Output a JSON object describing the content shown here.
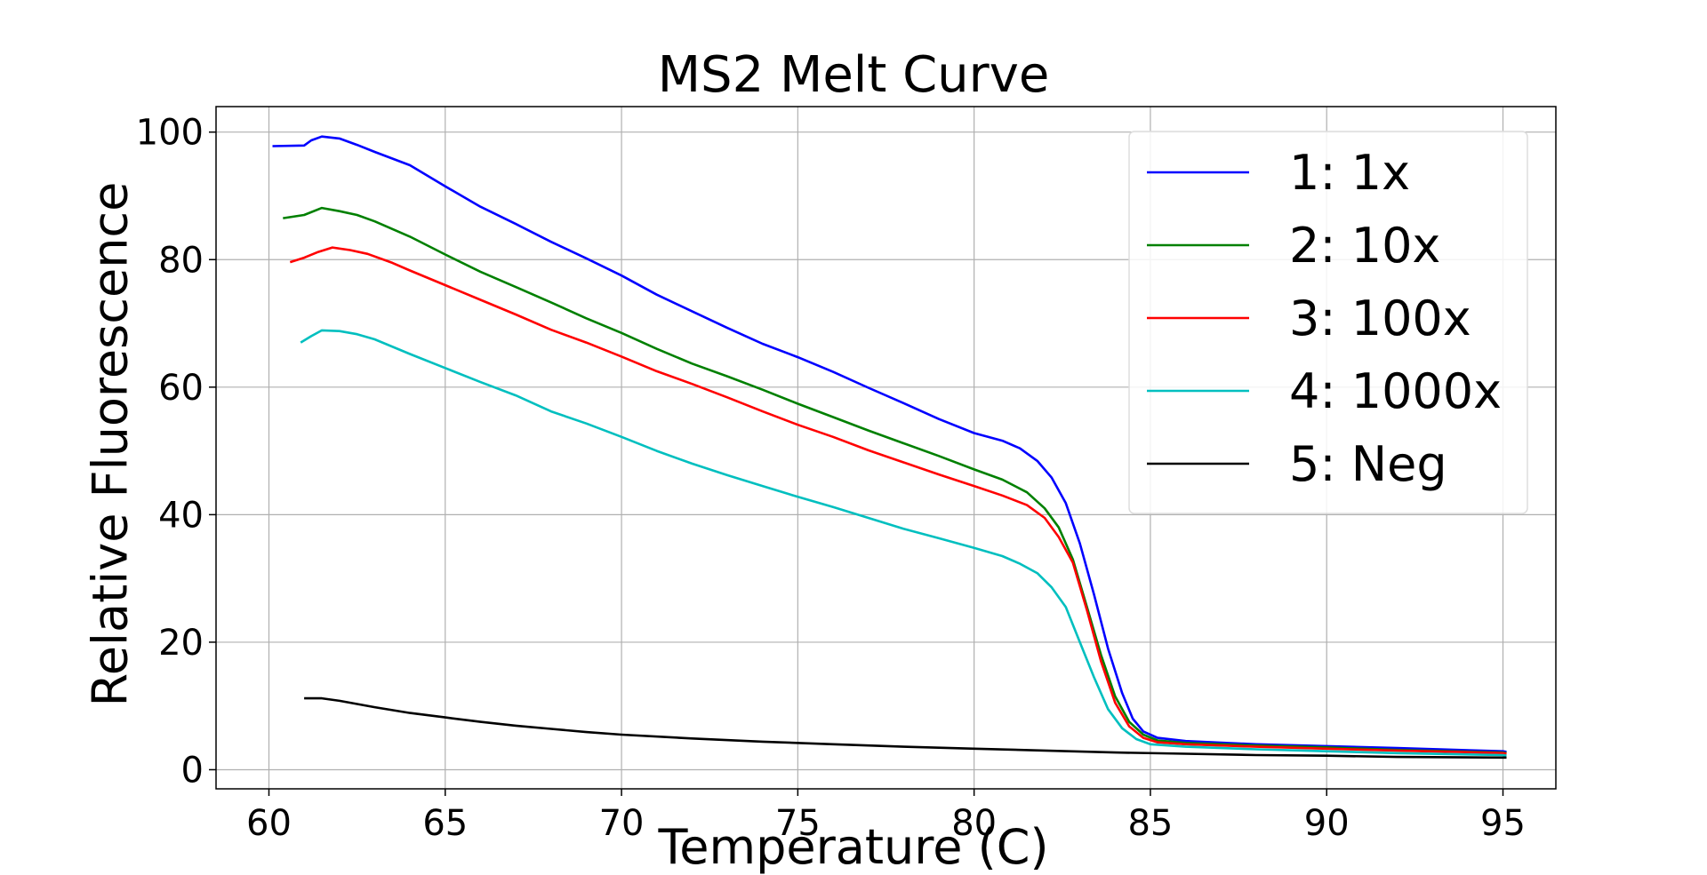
{
  "chart_data": {
    "type": "line",
    "title": "MS2 Melt Curve",
    "xlabel": "Temperature (C)",
    "ylabel": "Relative Fluorescence",
    "xlim": [
      58.5,
      96.5
    ],
    "ylim": [
      -3,
      104
    ],
    "xticks": [
      60,
      65,
      70,
      75,
      80,
      85,
      90,
      95
    ],
    "yticks": [
      0,
      20,
      40,
      60,
      80,
      100
    ],
    "grid": true,
    "legend_position": "top-right",
    "series": [
      {
        "name": "1: 1x",
        "color": "#0000ff",
        "points": [
          [
            60.1,
            97.8
          ],
          [
            61.0,
            97.9
          ],
          [
            61.2,
            98.7
          ],
          [
            61.5,
            99.3
          ],
          [
            62.0,
            99.0
          ],
          [
            62.5,
            98.0
          ],
          [
            63,
            96.9
          ],
          [
            64,
            94.8
          ],
          [
            65,
            91.5
          ],
          [
            66,
            88.3
          ],
          [
            67,
            85.6
          ],
          [
            68,
            82.8
          ],
          [
            69,
            80.2
          ],
          [
            70,
            77.5
          ],
          [
            71,
            74.5
          ],
          [
            72,
            71.9
          ],
          [
            73,
            69.3
          ],
          [
            74,
            66.8
          ],
          [
            75,
            64.7
          ],
          [
            76,
            62.4
          ],
          [
            77,
            59.9
          ],
          [
            78,
            57.5
          ],
          [
            79,
            55.0
          ],
          [
            80,
            52.8
          ],
          [
            80.8,
            51.6
          ],
          [
            81.3,
            50.4
          ],
          [
            81.8,
            48.4
          ],
          [
            82.2,
            45.8
          ],
          [
            82.6,
            41.8
          ],
          [
            83.0,
            35.5
          ],
          [
            83.4,
            27.5
          ],
          [
            83.8,
            19.0
          ],
          [
            84.2,
            12.0
          ],
          [
            84.5,
            8.0
          ],
          [
            84.8,
            6.0
          ],
          [
            85.2,
            5.0
          ],
          [
            86,
            4.5
          ],
          [
            88,
            4.0
          ],
          [
            90,
            3.7
          ],
          [
            92,
            3.4
          ],
          [
            95,
            2.9
          ],
          [
            95.1,
            2.8
          ]
        ]
      },
      {
        "name": "2: 10x",
        "color": "#008000",
        "points": [
          [
            60.4,
            86.5
          ],
          [
            61.0,
            87.0
          ],
          [
            61.5,
            88.1
          ],
          [
            62.0,
            87.6
          ],
          [
            62.5,
            87.0
          ],
          [
            63,
            86.0
          ],
          [
            64,
            83.6
          ],
          [
            65,
            80.8
          ],
          [
            66,
            78.1
          ],
          [
            67,
            75.7
          ],
          [
            68,
            73.3
          ],
          [
            69,
            70.8
          ],
          [
            70,
            68.5
          ],
          [
            71,
            66.0
          ],
          [
            72,
            63.7
          ],
          [
            73,
            61.7
          ],
          [
            74,
            59.6
          ],
          [
            75,
            57.4
          ],
          [
            76,
            55.3
          ],
          [
            77,
            53.2
          ],
          [
            78,
            51.2
          ],
          [
            79,
            49.2
          ],
          [
            80,
            47.1
          ],
          [
            80.8,
            45.5
          ],
          [
            81.5,
            43.5
          ],
          [
            82.0,
            41.0
          ],
          [
            82.4,
            38.0
          ],
          [
            82.8,
            33.0
          ],
          [
            83.2,
            25.5
          ],
          [
            83.6,
            18.0
          ],
          [
            84.0,
            11.5
          ],
          [
            84.4,
            7.5
          ],
          [
            84.8,
            5.5
          ],
          [
            85.2,
            4.6
          ],
          [
            86,
            4.2
          ],
          [
            88,
            3.8
          ],
          [
            90,
            3.5
          ],
          [
            92,
            3.1
          ],
          [
            95,
            2.7
          ],
          [
            95.1,
            2.6
          ]
        ]
      },
      {
        "name": "3: 100x",
        "color": "#ff0000",
        "points": [
          [
            60.6,
            79.6
          ],
          [
            61.0,
            80.3
          ],
          [
            61.4,
            81.2
          ],
          [
            61.8,
            81.9
          ],
          [
            62.3,
            81.5
          ],
          [
            62.8,
            80.9
          ],
          [
            63.5,
            79.5
          ],
          [
            64,
            78.3
          ],
          [
            65,
            76.0
          ],
          [
            66,
            73.7
          ],
          [
            67,
            71.4
          ],
          [
            68,
            69.0
          ],
          [
            69,
            67.0
          ],
          [
            70,
            64.8
          ],
          [
            71,
            62.5
          ],
          [
            72,
            60.5
          ],
          [
            73,
            58.4
          ],
          [
            74,
            56.2
          ],
          [
            75,
            54.1
          ],
          [
            76,
            52.2
          ],
          [
            77,
            50.1
          ],
          [
            78,
            48.2
          ],
          [
            79,
            46.3
          ],
          [
            80,
            44.5
          ],
          [
            80.8,
            43.0
          ],
          [
            81.5,
            41.5
          ],
          [
            82.0,
            39.5
          ],
          [
            82.4,
            36.5
          ],
          [
            82.8,
            32.5
          ],
          [
            83.2,
            25.0
          ],
          [
            83.6,
            17.0
          ],
          [
            84.0,
            10.5
          ],
          [
            84.4,
            6.8
          ],
          [
            84.8,
            5.0
          ],
          [
            85.2,
            4.3
          ],
          [
            86,
            4.0
          ],
          [
            88,
            3.6
          ],
          [
            90,
            3.3
          ],
          [
            92,
            3.0
          ],
          [
            95,
            2.6
          ],
          [
            95.1,
            2.5
          ]
        ]
      },
      {
        "name": "4: 1000x",
        "color": "#00bfbf",
        "points": [
          [
            60.9,
            67.0
          ],
          [
            61.2,
            68.0
          ],
          [
            61.5,
            68.9
          ],
          [
            62.0,
            68.8
          ],
          [
            62.5,
            68.3
          ],
          [
            63,
            67.5
          ],
          [
            64,
            65.2
          ],
          [
            65,
            63.0
          ],
          [
            66,
            60.8
          ],
          [
            67,
            58.7
          ],
          [
            68,
            56.2
          ],
          [
            69,
            54.3
          ],
          [
            70,
            52.2
          ],
          [
            71,
            50.0
          ],
          [
            72,
            48.0
          ],
          [
            73,
            46.2
          ],
          [
            74,
            44.5
          ],
          [
            75,
            42.8
          ],
          [
            76,
            41.2
          ],
          [
            77,
            39.5
          ],
          [
            78,
            37.8
          ],
          [
            79,
            36.3
          ],
          [
            80,
            34.8
          ],
          [
            80.8,
            33.5
          ],
          [
            81.3,
            32.3
          ],
          [
            81.8,
            30.8
          ],
          [
            82.2,
            28.6
          ],
          [
            82.6,
            25.5
          ],
          [
            83.0,
            20.0
          ],
          [
            83.4,
            14.5
          ],
          [
            83.8,
            9.5
          ],
          [
            84.2,
            6.5
          ],
          [
            84.6,
            4.8
          ],
          [
            85,
            4.0
          ],
          [
            86,
            3.6
          ],
          [
            88,
            3.2
          ],
          [
            90,
            2.9
          ],
          [
            92,
            2.6
          ],
          [
            95,
            2.3
          ],
          [
            95.1,
            2.2
          ]
        ]
      },
      {
        "name": "5: Neg",
        "color": "#000000",
        "points": [
          [
            61.0,
            11.2
          ],
          [
            61.5,
            11.2
          ],
          [
            62,
            10.8
          ],
          [
            63,
            9.8
          ],
          [
            64,
            8.9
          ],
          [
            65,
            8.2
          ],
          [
            66,
            7.5
          ],
          [
            67,
            6.9
          ],
          [
            68,
            6.4
          ],
          [
            69,
            5.9
          ],
          [
            70,
            5.5
          ],
          [
            72,
            4.9
          ],
          [
            74,
            4.4
          ],
          [
            76,
            4.0
          ],
          [
            78,
            3.6
          ],
          [
            80,
            3.3
          ],
          [
            82,
            3.0
          ],
          [
            84,
            2.7
          ],
          [
            86,
            2.5
          ],
          [
            88,
            2.3
          ],
          [
            90,
            2.2
          ],
          [
            92,
            2.0
          ],
          [
            95,
            1.9
          ],
          [
            95.1,
            1.9
          ]
        ]
      }
    ]
  }
}
